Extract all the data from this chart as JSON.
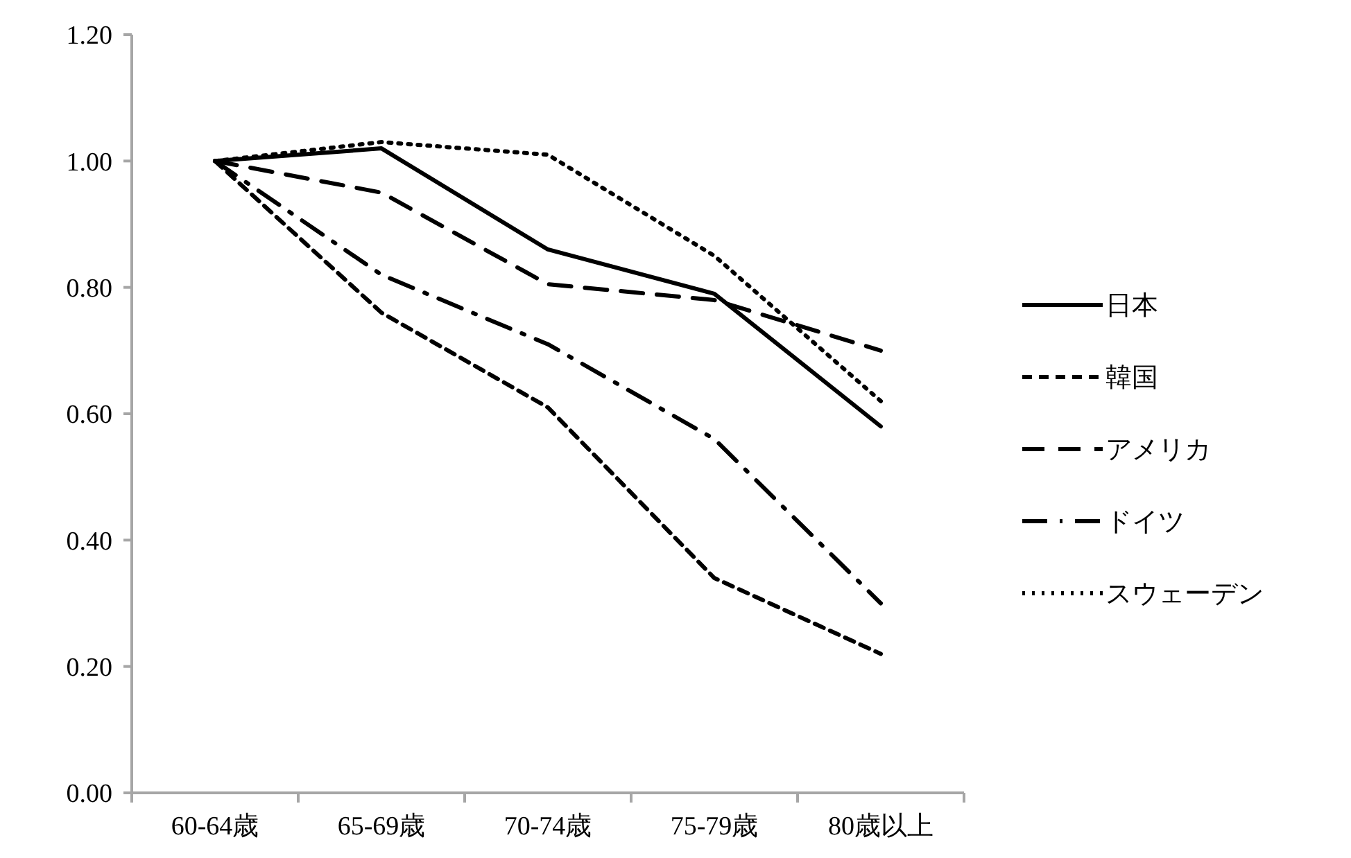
{
  "chart_data": {
    "type": "line",
    "categories": [
      "60-64歳",
      "65-69歳",
      "70-74歳",
      "75-79歳",
      "80歳以上"
    ],
    "ylim": [
      0,
      1.2
    ],
    "yticks": [
      {
        "value": 0,
        "label": "0.00"
      },
      {
        "value": 0.2,
        "label": "0.20"
      },
      {
        "value": 0.4,
        "label": "0.40"
      },
      {
        "value": 0.6,
        "label": "0.60"
      },
      {
        "value": 0.8,
        "label": "0.80"
      },
      {
        "value": 1,
        "label": "1.00"
      },
      {
        "value": 1.2,
        "label": "1.20"
      }
    ],
    "grid": false,
    "legend": "right",
    "marker": "none",
    "series": [
      {
        "name": "日本",
        "color": "#000000",
        "line_style": "solid",
        "values": [
          1.0,
          1.02,
          0.86,
          0.79,
          0.58
        ]
      },
      {
        "name": "韓国",
        "color": "#000000",
        "line_style": "dashed",
        "values": [
          1.0,
          0.76,
          0.61,
          0.34,
          0.22
        ]
      },
      {
        "name": "アメリカ",
        "color": "#000000",
        "line_style": "longdash",
        "values": [
          1.0,
          0.95,
          0.805,
          0.78,
          0.7
        ]
      },
      {
        "name": "ドイツ",
        "color": "#000000",
        "line_style": "dashdot",
        "values": [
          1.0,
          0.82,
          0.71,
          0.56,
          0.3
        ]
      },
      {
        "name": "スウェーデン",
        "color": "#000000",
        "line_style": "dotted",
        "values": [
          1.0,
          1.03,
          1.01,
          0.85,
          0.62
        ]
      }
    ]
  }
}
